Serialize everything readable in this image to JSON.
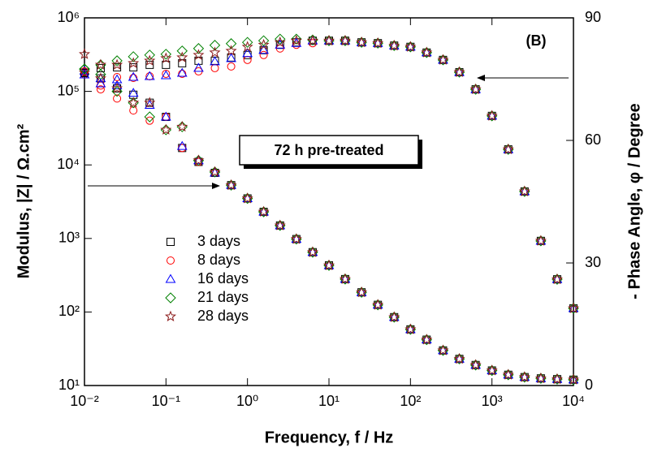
{
  "chart_data": {
    "type": "scatter",
    "xlabel": "Frequency, f / Hz",
    "ylabel": "Modulus, |Z| / Ω.cm²",
    "y2label": "- Phase Angle, φ / Degree",
    "annotations": [
      "(B)",
      "72 h pre-treated"
    ],
    "x_log": true,
    "y_log": true,
    "xlim": [
      0.01,
      10000
    ],
    "ylim": [
      10,
      1000000
    ],
    "y2lim": [
      0,
      90
    ],
    "xticks": [
      {
        "value": 0.01,
        "label": "10⁻²"
      },
      {
        "value": 0.1,
        "label": "10⁻¹"
      },
      {
        "value": 1,
        "label": "10⁰"
      },
      {
        "value": 10,
        "label": "10¹"
      },
      {
        "value": 100,
        "label": "10²"
      },
      {
        "value": 1000,
        "label": "10³"
      },
      {
        "value": 10000,
        "label": "10⁴"
      }
    ],
    "yticks": [
      {
        "value": 10,
        "label": "10¹"
      },
      {
        "value": 100,
        "label": "10²"
      },
      {
        "value": 1000,
        "label": "10³"
      },
      {
        "value": 10000,
        "label": "10⁴"
      },
      {
        "value": 100000,
        "label": "10⁵"
      },
      {
        "value": 1000000,
        "label": "10⁶"
      }
    ],
    "y2ticks": [
      0,
      30,
      60,
      90
    ],
    "x": [
      0.01,
      0.0158,
      0.0251,
      0.0398,
      0.0631,
      0.1,
      0.158,
      0.251,
      0.398,
      0.631,
      1,
      1.58,
      2.51,
      3.98,
      6.31,
      10,
      15.8,
      25.1,
      39.8,
      63.1,
      100,
      158,
      251,
      398,
      631,
      1000,
      1585,
      2512,
      3981,
      6310,
      10000
    ],
    "series": [
      {
        "name": "3 days",
        "color": "#000000",
        "marker": "square",
        "values": [
          180000,
          150000,
          110000,
          90000,
          70000,
          45000,
          17000,
          11000,
          7800,
          5300,
          3500,
          2300,
          1500,
          980,
          650,
          430,
          280,
          185,
          125,
          85,
          58,
          42,
          30,
          23,
          19,
          16,
          14,
          13,
          12.5,
          12.2,
          12
        ]
      },
      {
        "name": "8 days",
        "color": "#ff0000",
        "marker": "circle",
        "values": [
          170000,
          120000,
          80000,
          55000,
          40000,
          45000,
          17000,
          11000,
          7800,
          5300,
          3500,
          2300,
          1500,
          980,
          650,
          430,
          280,
          185,
          125,
          85,
          58,
          42,
          30,
          23,
          19,
          16,
          14,
          13,
          12.5,
          12.2,
          12
        ]
      },
      {
        "name": "16 days",
        "color": "#0000ff",
        "marker": "triangle",
        "values": [
          190000,
          150000,
          120000,
          95000,
          65000,
          45000,
          18000,
          11500,
          7800,
          5300,
          3500,
          2300,
          1500,
          980,
          650,
          430,
          280,
          185,
          125,
          85,
          58,
          42,
          30,
          23,
          19,
          16,
          14,
          13,
          12.5,
          12.2,
          12
        ]
      },
      {
        "name": "21 days",
        "color": "#008000",
        "marker": "diamond",
        "values": [
          200000,
          170000,
          100000,
          70000,
          45000,
          30000,
          33000,
          11500,
          8000,
          5300,
          3500,
          2300,
          1500,
          980,
          650,
          430,
          280,
          185,
          125,
          85,
          58,
          42,
          30,
          23,
          19,
          16,
          14,
          13,
          12.5,
          12.2,
          12
        ]
      },
      {
        "name": "28 days",
        "color": "#8b1a1a",
        "marker": "star",
        "values": [
          180000,
          150000,
          110000,
          70000,
          70000,
          30000,
          33000,
          11500,
          8000,
          5300,
          3500,
          2300,
          1500,
          980,
          650,
          430,
          280,
          185,
          125,
          85,
          58,
          42,
          30,
          23,
          19,
          16,
          14,
          13,
          12.5,
          12.2,
          12
        ]
      }
    ],
    "phase_series": [
      {
        "axis": "y2",
        "color": "#000000",
        "marker": "square",
        "values": [
          76.5,
          77.7,
          77.9,
          77.9,
          78.5,
          78.5,
          78.9,
          79.5,
          79.5,
          80.3,
          80.9,
          82.1,
          83.4,
          84.0,
          84.4,
          84.4,
          84.4,
          84.0,
          83.8,
          83.2,
          82.9,
          81.5,
          79.7,
          76.7,
          72.5,
          66.0,
          57.8,
          47.5,
          35.4,
          26.0,
          18.9
        ]
      },
      {
        "axis": "y2",
        "color": "#ff0000",
        "marker": "circle",
        "values": [
          76.9,
          72.5,
          75.5,
          75.3,
          75.7,
          76.3,
          76.3,
          76.9,
          77.7,
          78.1,
          79.7,
          80.9,
          82.5,
          83.4,
          83.8,
          84.4,
          84.4,
          84.0,
          83.8,
          83.2,
          82.9,
          81.5,
          79.7,
          76.7,
          72.5,
          66.0,
          57.8,
          47.5,
          35.4,
          26.0,
          18.9
        ]
      },
      {
        "axis": "y2",
        "color": "#0000ff",
        "marker": "triangle",
        "values": [
          76.1,
          73.9,
          74.9,
          75.5,
          75.7,
          75.9,
          76.5,
          77.7,
          79.3,
          80.1,
          81.3,
          82.1,
          83.4,
          83.8,
          84.4,
          84.4,
          84.4,
          84.0,
          83.8,
          83.2,
          82.9,
          81.5,
          79.7,
          76.7,
          72.5,
          66.0,
          57.8,
          47.5,
          35.4,
          26.0,
          18.9
        ]
      },
      {
        "axis": "y2",
        "color": "#008000",
        "marker": "diamond",
        "values": [
          77.5,
          78.5,
          79.5,
          80.5,
          80.9,
          81.1,
          81.9,
          82.5,
          83.3,
          83.7,
          84.0,
          84.4,
          84.8,
          84.8,
          84.6,
          84.4,
          84.4,
          84.0,
          83.8,
          83.2,
          82.9,
          81.5,
          79.7,
          76.7,
          72.5,
          66.0,
          57.8,
          47.5,
          35.4,
          26.0,
          18.9
        ]
      },
      {
        "axis": "y2",
        "color": "#8b1a1a",
        "marker": "star",
        "values": [
          81.1,
          78.5,
          78.5,
          78.9,
          79.5,
          80.1,
          80.3,
          80.9,
          81.5,
          81.9,
          82.9,
          83.4,
          84.0,
          84.4,
          84.4,
          84.4,
          84.4,
          84.0,
          83.8,
          83.2,
          82.9,
          81.5,
          79.7,
          76.7,
          72.5,
          66.0,
          57.8,
          47.5,
          35.4,
          26.0,
          18.9
        ]
      }
    ]
  }
}
